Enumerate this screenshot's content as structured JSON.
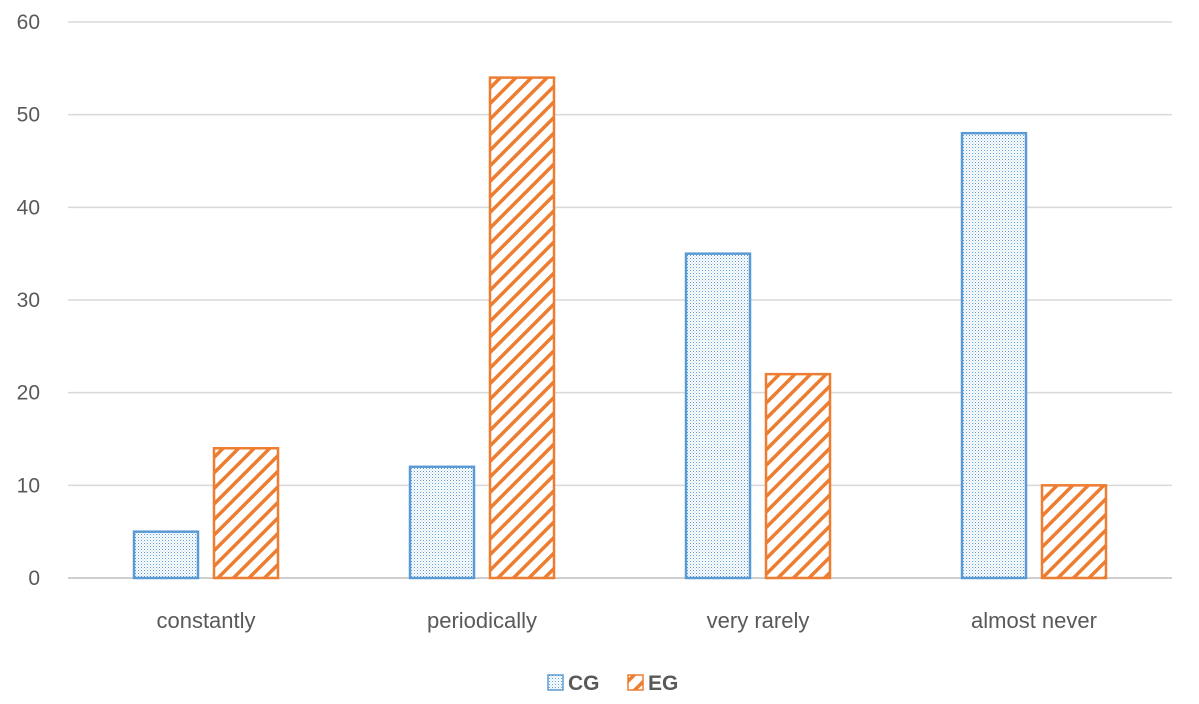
{
  "chart_data": {
    "type": "bar",
    "categories": [
      "constantly",
      "periodically",
      "very rarely",
      "almost never"
    ],
    "series": [
      {
        "name": "CG",
        "values": [
          5,
          12,
          35,
          48
        ],
        "color": "#5B9BD5",
        "pattern": "dotted"
      },
      {
        "name": "EG",
        "values": [
          14,
          54,
          22,
          10
        ],
        "color": "#ED7D31",
        "pattern": "diagonal-hatch"
      }
    ],
    "ylim": [
      0,
      60
    ],
    "yticks": [
      0,
      10,
      20,
      30,
      40,
      50,
      60
    ],
    "grid": true,
    "legend": "bottom-center"
  }
}
